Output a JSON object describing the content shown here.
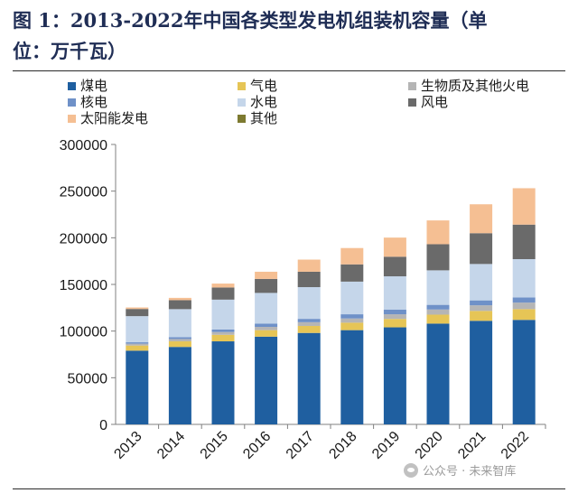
{
  "title_line1": "图 1：2013-2022年中国各类型发电机组装机容量（单",
  "title_line2": "位：万千瓦）",
  "watermark": "公众号 · 未来智库",
  "chart_data": {
    "type": "bar",
    "stacked": true,
    "categories": [
      "2013",
      "2014",
      "2015",
      "2016",
      "2017",
      "2018",
      "2019",
      "2020",
      "2021",
      "2022"
    ],
    "ylim": [
      0,
      300000
    ],
    "yticks": [
      "0",
      "50000",
      "100000",
      "150000",
      "200000",
      "250000",
      "300000"
    ],
    "series": [
      {
        "name": "煤电",
        "color": "#1f5fa0",
        "values": [
          79000,
          83000,
          89000,
          94000,
          98000,
          101000,
          104000,
          108000,
          111000,
          112000
        ]
      },
      {
        "name": "气电",
        "color": "#e6c556",
        "values": [
          5500,
          6000,
          7000,
          7000,
          7500,
          8000,
          9000,
          9600,
          10600,
          11500
        ]
      },
      {
        "name": "生物质及其他火电",
        "color": "#b5b5b5",
        "values": [
          2000,
          2500,
          3000,
          3500,
          4000,
          4500,
          5000,
          5500,
          6000,
          7000
        ]
      },
      {
        "name": "核电",
        "color": "#6f91c8",
        "values": [
          1500,
          2000,
          2700,
          3400,
          3600,
          4500,
          4900,
          5000,
          5300,
          5600
        ]
      },
      {
        "name": "水电",
        "color": "#c5d6ea",
        "values": [
          28000,
          30000,
          32000,
          33000,
          34000,
          35000,
          35800,
          37000,
          39000,
          41000
        ]
      },
      {
        "name": "风电",
        "color": "#6a6a6a",
        "values": [
          7700,
          9600,
          13000,
          15000,
          16500,
          18500,
          21000,
          28000,
          33000,
          37000
        ]
      },
      {
        "name": "太阳能发电",
        "color": "#f5bf93",
        "values": [
          1600,
          2500,
          4200,
          7700,
          13000,
          17500,
          20500,
          25500,
          31000,
          39000
        ]
      },
      {
        "name": "其他",
        "color": "#7d7a30",
        "values": [
          0,
          0,
          0,
          0,
          0,
          0,
          0,
          0,
          0,
          0
        ]
      }
    ]
  }
}
